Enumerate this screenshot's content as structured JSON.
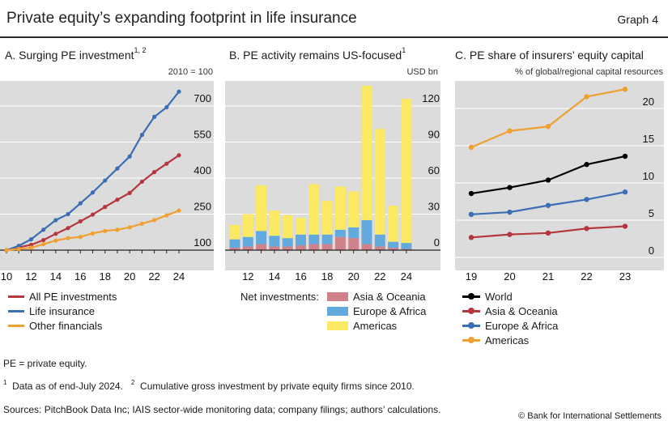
{
  "header": {
    "title": "Private equity’s expanding footprint in life insurance",
    "graph_label": "Graph 4"
  },
  "panels": {
    "a": {
      "title": "A. Surging PE investment",
      "title_sup": "1, 2",
      "unit": "2010 = 100"
    },
    "b": {
      "title": "B. PE activity remains US-focused",
      "title_sup": "1",
      "unit": "USD bn",
      "legend_prefix": "Net investments:"
    },
    "c": {
      "title": "C. PE share of insurers’ equity capital",
      "unit": "% of global/regional capital resources"
    }
  },
  "colors": {
    "red": "#b5373d",
    "blue": "#3a6eb5",
    "orange": "#f0a030",
    "black": "#000000",
    "asia": "#d0828a",
    "europe": "#62aade",
    "americas": "#fbe964",
    "panel_bg": "#dcdcdc"
  },
  "chart_data": [
    {
      "id": "panel-a",
      "type": "line",
      "title": "A. Surging PE investment",
      "x": [
        10,
        11,
        12,
        13,
        14,
        15,
        16,
        17,
        18,
        19,
        20,
        21,
        22,
        23,
        24
      ],
      "xticks": [
        "10",
        "12",
        "14",
        "16",
        "18",
        "20",
        "22",
        "24"
      ],
      "ylim": [
        60,
        800
      ],
      "yticks": [
        100,
        250,
        400,
        550,
        700
      ],
      "series": [
        {
          "name": "All PE investments",
          "color": "#b5373d",
          "values": [
            100,
            112,
            122,
            142,
            168,
            192,
            220,
            248,
            280,
            310,
            338,
            385,
            425,
            460,
            495
          ]
        },
        {
          "name": "Life insurance",
          "color": "#3a6eb5",
          "values": [
            100,
            118,
            145,
            185,
            225,
            250,
            295,
            340,
            390,
            440,
            490,
            580,
            655,
            695,
            760
          ]
        },
        {
          "name": "Other financials",
          "color": "#f0a030",
          "values": [
            100,
            105,
            110,
            125,
            140,
            150,
            155,
            170,
            180,
            185,
            195,
            210,
            225,
            245,
            265
          ]
        }
      ]
    },
    {
      "id": "panel-b",
      "type": "bar",
      "stacked": true,
      "title": "B. PE activity remains US-focused",
      "x": [
        11,
        12,
        13,
        14,
        15,
        16,
        17,
        18,
        19,
        20,
        21,
        22,
        23,
        24
      ],
      "xticks": [
        "12",
        "14",
        "16",
        "18",
        "20",
        "22",
        "24"
      ],
      "ylim": [
        0,
        145
      ],
      "yticks": [
        0,
        30,
        60,
        90,
        120
      ],
      "series": [
        {
          "name": "Asia & Oceania",
          "color": "#d0828a",
          "values": [
            2,
            3,
            5,
            3,
            3,
            4,
            5,
            5,
            11,
            10,
            5,
            3,
            2,
            1
          ]
        },
        {
          "name": "Europe & Africa",
          "color": "#62aade",
          "values": [
            7,
            8,
            11,
            9,
            7,
            9,
            8,
            8,
            6,
            9,
            20,
            10,
            5,
            5
          ]
        },
        {
          "name": "Americas",
          "color": "#fbe964",
          "values": [
            12,
            19,
            38,
            21,
            19,
            14,
            42,
            28,
            36,
            30,
            112,
            88,
            30,
            120
          ]
        }
      ]
    },
    {
      "id": "panel-c",
      "type": "line",
      "title": "C. PE share of insurers’ equity capital",
      "x": [
        19,
        20,
        21,
        22,
        23
      ],
      "xticks": [
        "19",
        "20",
        "21",
        "22",
        "23"
      ],
      "ylim": [
        -1,
        25
      ],
      "yticks": [
        0,
        5,
        10,
        15,
        20
      ],
      "series": [
        {
          "name": "World",
          "color": "#000000",
          "values": [
            8.8,
            9.6,
            10.6,
            12.7,
            13.8
          ]
        },
        {
          "name": "Asia & Oceania",
          "color": "#b5373d",
          "values": [
            2.9,
            3.3,
            3.5,
            4.1,
            4.4
          ]
        },
        {
          "name": "Europe & Africa",
          "color": "#3a6eb5",
          "values": [
            6.0,
            6.3,
            7.2,
            8.0,
            9.0
          ]
        },
        {
          "name": "Americas",
          "color": "#f0a030",
          "values": [
            15.0,
            17.2,
            17.8,
            21.8,
            22.8
          ]
        }
      ]
    }
  ],
  "notes": {
    "abbrev": "PE = private equity.",
    "fn1_mark": "1",
    "fn1": "Data as of end-July 2024.",
    "fn2_mark": "2",
    "fn2": "Cumulative gross investment by private equity firms since 2010.",
    "sources": "Sources: PitchBook Data Inc; IAIS sector-wide monitoring data; company filings; authors’ calculations.",
    "copyright": "© Bank for International Settlements"
  }
}
